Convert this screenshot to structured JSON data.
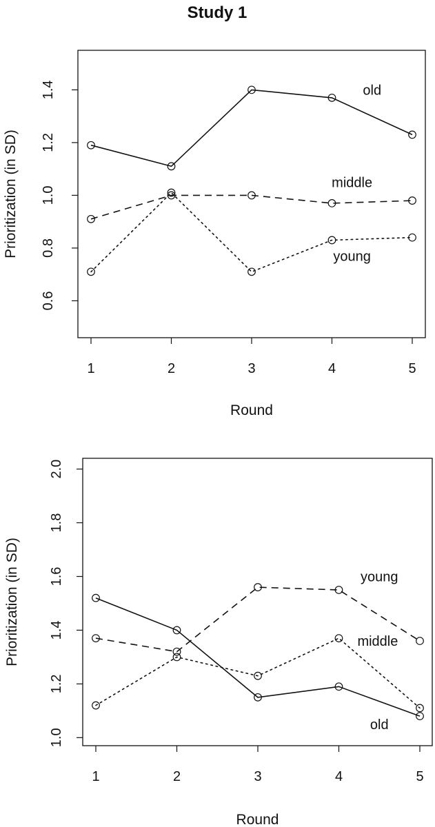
{
  "chart_data": [
    {
      "type": "line",
      "title": "Study 1",
      "xlabel": "Round",
      "ylabel": "Prioritization (in SD)",
      "x": [
        1,
        2,
        3,
        4,
        5
      ],
      "xticks": [
        "1",
        "2",
        "3",
        "4",
        "5"
      ],
      "yticks": [
        "0.6",
        "0.8",
        "1.0",
        "1.2",
        "1.4"
      ],
      "ytick_values": [
        0.6,
        0.8,
        1.0,
        1.2,
        1.4
      ],
      "ylim": [
        0.46,
        1.55
      ],
      "series": [
        {
          "name": "old",
          "style": "solid",
          "values": [
            1.19,
            1.11,
            1.4,
            1.37,
            1.23
          ]
        },
        {
          "name": "middle",
          "style": "dashed",
          "values": [
            0.91,
            1.0,
            1.0,
            0.97,
            0.98
          ]
        },
        {
          "name": "young",
          "style": "dotted",
          "values": [
            0.71,
            1.01,
            0.71,
            0.83,
            0.84
          ]
        }
      ],
      "labels": [
        {
          "text": "old",
          "x": 4.5,
          "y": 1.4
        },
        {
          "text": "middle",
          "x": 4.25,
          "y": 1.05
        },
        {
          "text": "young",
          "x": 4.25,
          "y": 0.77
        }
      ]
    },
    {
      "type": "line",
      "title": "",
      "xlabel": "Round",
      "ylabel": "Prioritization (in SD)",
      "x": [
        1,
        2,
        3,
        4,
        5
      ],
      "xticks": [
        "1",
        "2",
        "3",
        "4",
        "5"
      ],
      "yticks": [
        "1.0",
        "1.2",
        "1.4",
        "1.6",
        "1.8",
        "2.0"
      ],
      "ytick_values": [
        1.0,
        1.2,
        1.4,
        1.6,
        1.8,
        2.0
      ],
      "ylim": [
        0.97,
        2.04
      ],
      "series": [
        {
          "name": "old",
          "style": "solid",
          "values": [
            1.52,
            1.4,
            1.15,
            1.19,
            1.08
          ]
        },
        {
          "name": "young",
          "style": "dashed",
          "values": [
            1.37,
            1.32,
            1.56,
            1.55,
            1.36
          ]
        },
        {
          "name": "middle",
          "style": "dotted",
          "values": [
            1.12,
            1.3,
            1.23,
            1.37,
            1.11
          ]
        }
      ],
      "labels": [
        {
          "text": "young",
          "x": 4.5,
          "y": 1.6
        },
        {
          "text": "middle",
          "x": 4.48,
          "y": 1.36
        },
        {
          "text": "old",
          "x": 4.5,
          "y": 1.05
        }
      ]
    }
  ]
}
